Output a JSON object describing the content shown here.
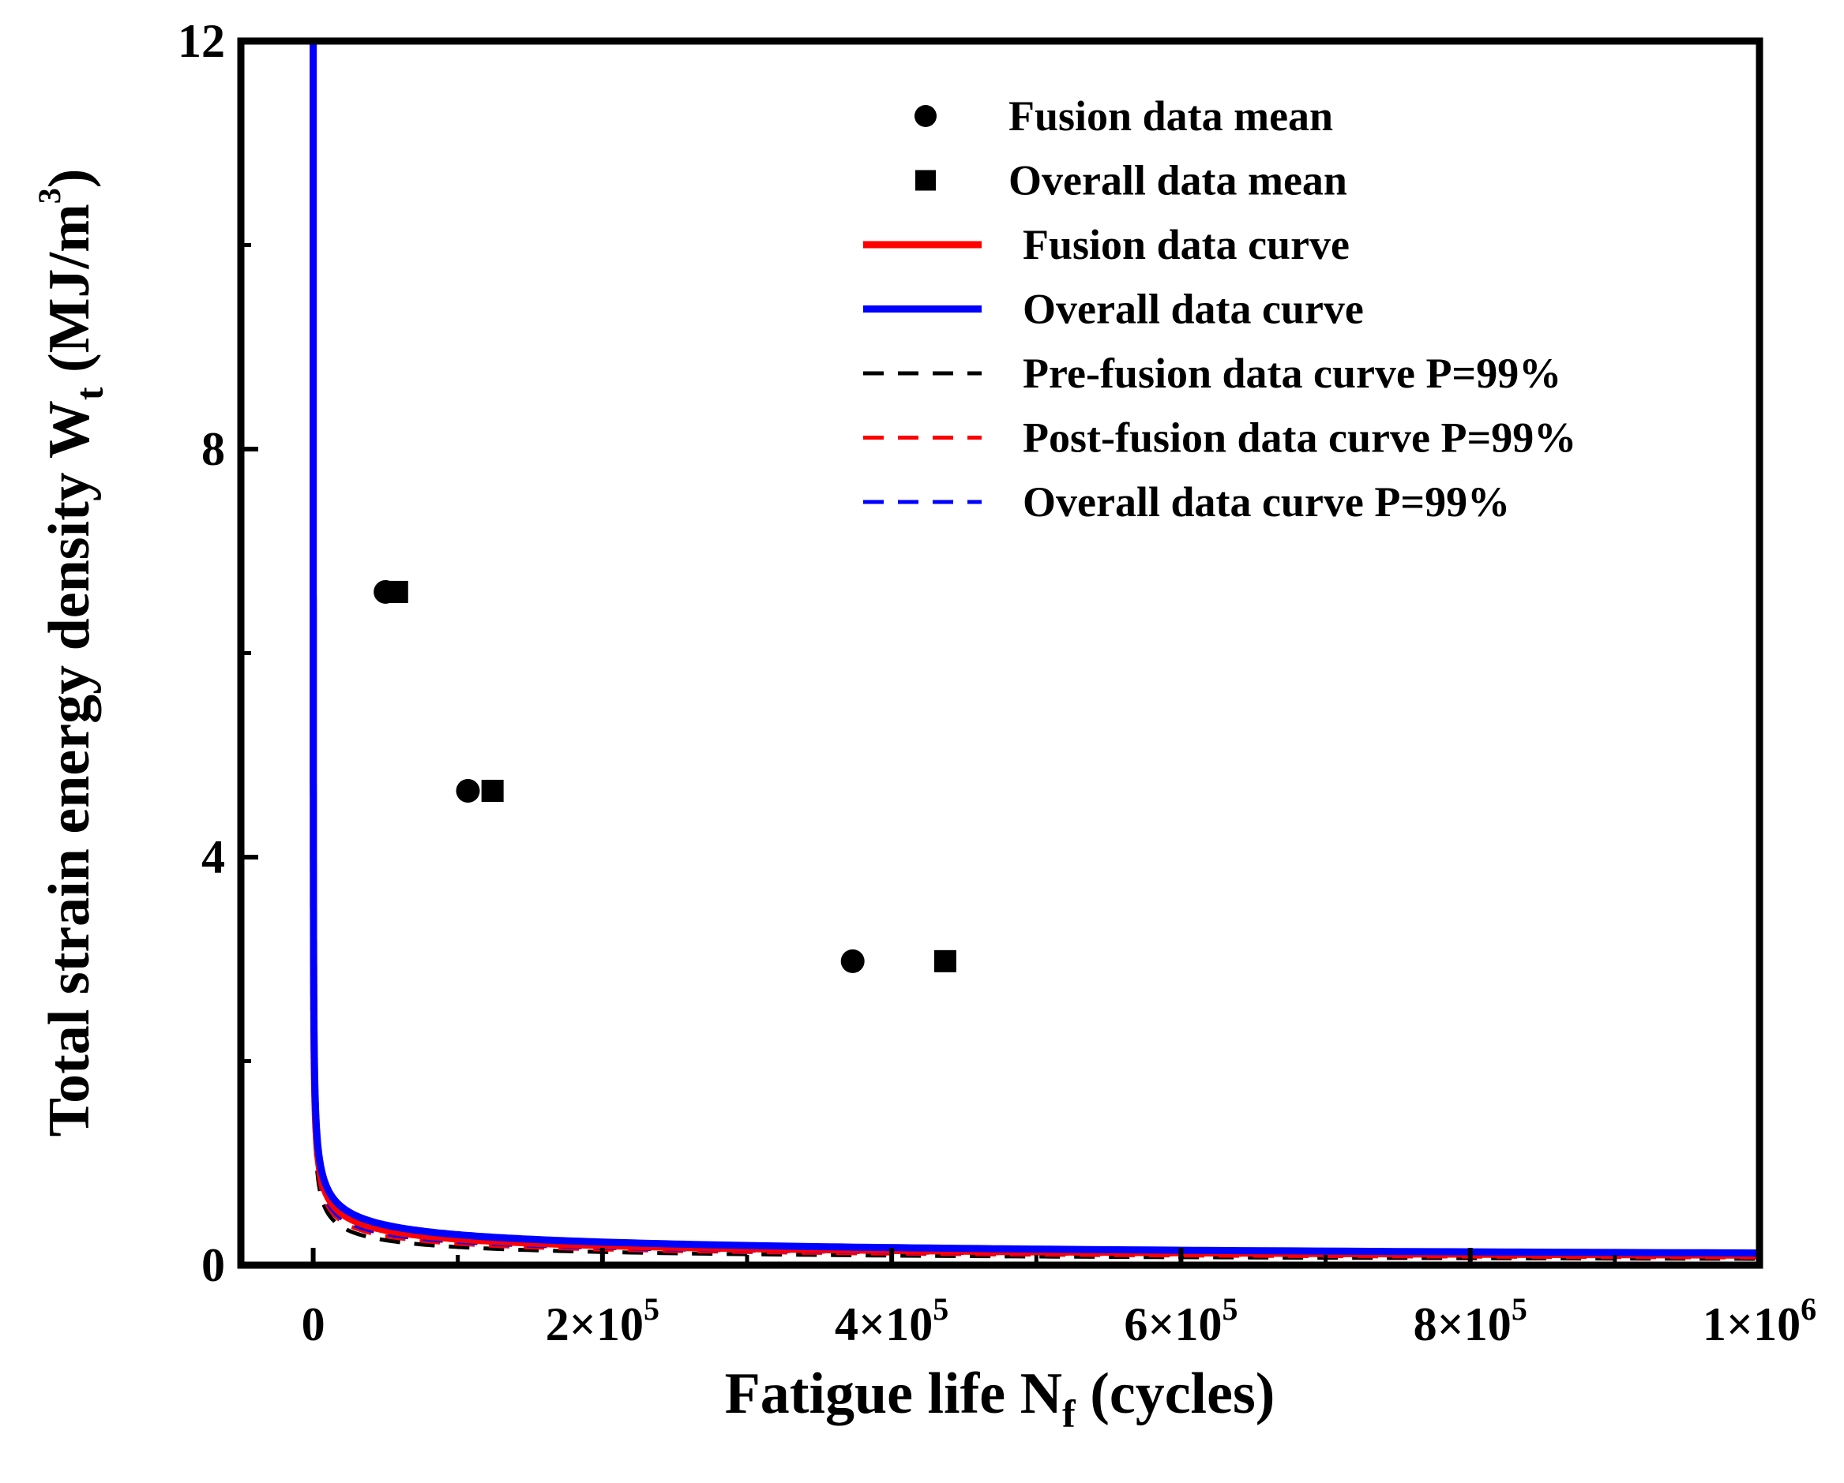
{
  "chart_data": {
    "type": "line",
    "x_axis": {
      "title_main": "Fatigue life N",
      "title_sub": "f",
      "title_rest": " (cycles)",
      "range": [
        -50000,
        1000000
      ],
      "ticks": [
        {
          "value": 0,
          "mantissa": "0",
          "exp": ""
        },
        {
          "value": 200000,
          "mantissa": "2×10",
          "exp": "5"
        },
        {
          "value": 400000,
          "mantissa": "4×10",
          "exp": "5"
        },
        {
          "value": 600000,
          "mantissa": "6×10",
          "exp": "5"
        },
        {
          "value": 800000,
          "mantissa": "8×10",
          "exp": "5"
        },
        {
          "value": 1000000,
          "mantissa": "1×10",
          "exp": "6"
        }
      ],
      "minor_ticks": [
        100000,
        300000,
        500000,
        700000,
        900000
      ]
    },
    "y_axis": {
      "title_main": "Total strain energy density  W",
      "title_sub": "t",
      "title_unit": " (MJ/m",
      "title_sup": "3",
      "title_close": ")",
      "range": [
        0,
        12
      ],
      "ticks": [
        {
          "value": 0,
          "label": "0"
        },
        {
          "value": 4,
          "label": "4"
        },
        {
          "value": 8,
          "label": "8"
        },
        {
          "value": 12,
          "label": "12"
        }
      ],
      "minor_ticks": [
        2,
        6,
        10
      ]
    },
    "series": [
      {
        "name": "Fusion data mean",
        "kind": "scatter",
        "marker": "circle",
        "color": "#000000",
        "points": [
          [
            50000,
            6.6
          ],
          [
            107000,
            4.65
          ],
          [
            373000,
            2.98
          ]
        ]
      },
      {
        "name": "Overall data mean",
        "kind": "scatter",
        "marker": "square",
        "color": "#000000",
        "points": [
          [
            58000,
            6.6
          ],
          [
            124000,
            4.65
          ],
          [
            437000,
            2.98
          ]
        ]
      },
      {
        "name": "Fusion data curve",
        "kind": "line",
        "dash": "solid",
        "color": "#ff0000",
        "width": 9,
        "coef": 31.2,
        "exp": -0.417
      },
      {
        "name": "Overall data curve",
        "kind": "line",
        "dash": "solid",
        "color": "#0000ff",
        "width": 9,
        "coef": 29.2,
        "exp": -0.398
      },
      {
        "name": "Pre-fusion data curve P=99%",
        "kind": "line",
        "dash": "dashed",
        "color": "#000000",
        "width": 5,
        "coef": 35.5,
        "exp": -0.46
      },
      {
        "name": "Post-fusion data curve P=99%",
        "kind": "line",
        "dash": "dashed",
        "color": "#ff0000",
        "width": 5,
        "coef": 34.0,
        "exp": -0.442
      },
      {
        "name": "Overall data curve P=99%",
        "kind": "line",
        "dash": "dashed",
        "color": "#0000ff",
        "width": 5,
        "coef": 31.5,
        "exp": -0.428
      }
    ],
    "legend_position": "top-right"
  }
}
